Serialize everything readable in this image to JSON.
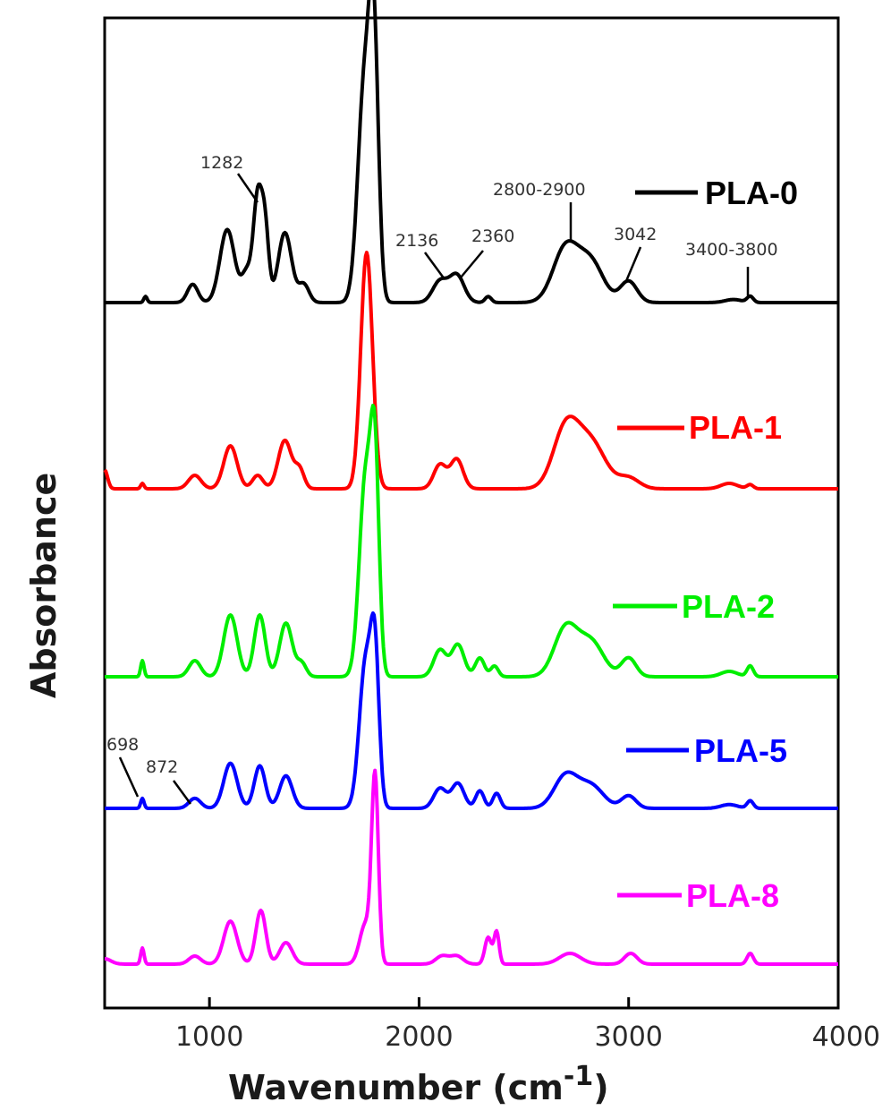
{
  "chart_data": {
    "type": "line",
    "title": "",
    "xlabel": "Wavenumber (cm",
    "xlabel_superscript": "-1",
    "xlabel_close": ")",
    "ylabel": "Absorbance",
    "xlim": [
      500,
      4000
    ],
    "x_ticks": [
      1000,
      2000,
      3000,
      4000
    ],
    "x_tick_labels": [
      "1000",
      "2000",
      "3000",
      "4000"
    ],
    "y_ticks_shown": false,
    "grid": false,
    "legend_placement": "inline-right",
    "colors": {
      "PLA-0": "#000000",
      "PLA-1": "#ff0000",
      "PLA-2": "#00ee00",
      "PLA-5": "#0000ff",
      "PLA-8": "#ff00ff"
    },
    "series": [
      {
        "name": "PLA-0",
        "color": "#000000",
        "baseline": 0.0,
        "peaks": [
          {
            "x": 695,
            "h": 0.02,
            "w": 8
          },
          {
            "x": 920,
            "h": 0.06,
            "w": 25
          },
          {
            "x": 1085,
            "h": 0.24,
            "w": 35
          },
          {
            "x": 1180,
            "h": 0.1,
            "w": 25
          },
          {
            "x": 1230,
            "h": 0.33,
            "w": 20
          },
          {
            "x": 1265,
            "h": 0.24,
            "w": 18
          },
          {
            "x": 1360,
            "h": 0.23,
            "w": 32
          },
          {
            "x": 1450,
            "h": 0.06,
            "w": 25
          },
          {
            "x": 1740,
            "h": 0.72,
            "w": 32
          },
          {
            "x": 1785,
            "h": 0.76,
            "w": 22
          },
          {
            "x": 2100,
            "h": 0.07,
            "w": 35
          },
          {
            "x": 2180,
            "h": 0.09,
            "w": 35
          },
          {
            "x": 2330,
            "h": 0.02,
            "w": 15
          },
          {
            "x": 2700,
            "h": 0.18,
            "w": 60
          },
          {
            "x": 2820,
            "h": 0.13,
            "w": 60
          },
          {
            "x": 3000,
            "h": 0.07,
            "w": 40
          },
          {
            "x": 3500,
            "h": 0.01,
            "w": 40
          },
          {
            "x": 3580,
            "h": 0.02,
            "w": 15
          }
        ]
      },
      {
        "name": "PLA-1",
        "color": "#ff0000",
        "baseline": 0.0,
        "peaks": [
          {
            "x": 500,
            "h": 0.07,
            "w": 14
          },
          {
            "x": 680,
            "h": 0.02,
            "w": 8
          },
          {
            "x": 930,
            "h": 0.05,
            "w": 30
          },
          {
            "x": 1100,
            "h": 0.16,
            "w": 32
          },
          {
            "x": 1230,
            "h": 0.05,
            "w": 25
          },
          {
            "x": 1360,
            "h": 0.18,
            "w": 32
          },
          {
            "x": 1430,
            "h": 0.07,
            "w": 22
          },
          {
            "x": 1750,
            "h": 0.88,
            "w": 28
          },
          {
            "x": 2100,
            "h": 0.09,
            "w": 30
          },
          {
            "x": 2180,
            "h": 0.11,
            "w": 30
          },
          {
            "x": 2700,
            "h": 0.22,
            "w": 60
          },
          {
            "x": 2820,
            "h": 0.17,
            "w": 70
          },
          {
            "x": 3000,
            "h": 0.04,
            "w": 50
          },
          {
            "x": 3480,
            "h": 0.02,
            "w": 40
          },
          {
            "x": 3580,
            "h": 0.015,
            "w": 15
          }
        ]
      },
      {
        "name": "PLA-2",
        "color": "#00ee00",
        "baseline": 0.0,
        "peaks": [
          {
            "x": 680,
            "h": 0.06,
            "w": 8
          },
          {
            "x": 930,
            "h": 0.06,
            "w": 28
          },
          {
            "x": 1100,
            "h": 0.23,
            "w": 32
          },
          {
            "x": 1240,
            "h": 0.23,
            "w": 26
          },
          {
            "x": 1365,
            "h": 0.2,
            "w": 30
          },
          {
            "x": 1440,
            "h": 0.05,
            "w": 22
          },
          {
            "x": 1745,
            "h": 0.74,
            "w": 30
          },
          {
            "x": 1790,
            "h": 0.72,
            "w": 20
          },
          {
            "x": 2100,
            "h": 0.1,
            "w": 30
          },
          {
            "x": 2185,
            "h": 0.12,
            "w": 30
          },
          {
            "x": 2290,
            "h": 0.07,
            "w": 22
          },
          {
            "x": 2360,
            "h": 0.04,
            "w": 18
          },
          {
            "x": 2700,
            "h": 0.18,
            "w": 55
          },
          {
            "x": 2820,
            "h": 0.13,
            "w": 60
          },
          {
            "x": 3000,
            "h": 0.07,
            "w": 35
          },
          {
            "x": 3480,
            "h": 0.02,
            "w": 40
          },
          {
            "x": 3580,
            "h": 0.04,
            "w": 15
          }
        ]
      },
      {
        "name": "PLA-5",
        "color": "#0000ff",
        "baseline": 0.0,
        "peaks": [
          {
            "x": 680,
            "h": 0.04,
            "w": 8
          },
          {
            "x": 930,
            "h": 0.04,
            "w": 28
          },
          {
            "x": 1100,
            "h": 0.18,
            "w": 32
          },
          {
            "x": 1240,
            "h": 0.17,
            "w": 26
          },
          {
            "x": 1365,
            "h": 0.13,
            "w": 30
          },
          {
            "x": 1745,
            "h": 0.58,
            "w": 30
          },
          {
            "x": 1790,
            "h": 0.55,
            "w": 20
          },
          {
            "x": 2100,
            "h": 0.08,
            "w": 30
          },
          {
            "x": 2185,
            "h": 0.1,
            "w": 30
          },
          {
            "x": 2290,
            "h": 0.07,
            "w": 20
          },
          {
            "x": 2370,
            "h": 0.06,
            "w": 18
          },
          {
            "x": 2700,
            "h": 0.13,
            "w": 55
          },
          {
            "x": 2820,
            "h": 0.09,
            "w": 60
          },
          {
            "x": 3000,
            "h": 0.05,
            "w": 35
          },
          {
            "x": 3480,
            "h": 0.015,
            "w": 40
          },
          {
            "x": 3580,
            "h": 0.03,
            "w": 15
          }
        ]
      },
      {
        "name": "PLA-8",
        "color": "#ff00ff",
        "baseline": 0.0,
        "peaks": [
          {
            "x": 500,
            "h": 0.02,
            "w": 30
          },
          {
            "x": 680,
            "h": 0.06,
            "w": 8
          },
          {
            "x": 930,
            "h": 0.03,
            "w": 28
          },
          {
            "x": 1100,
            "h": 0.16,
            "w": 32
          },
          {
            "x": 1245,
            "h": 0.2,
            "w": 24
          },
          {
            "x": 1365,
            "h": 0.08,
            "w": 30
          },
          {
            "x": 1745,
            "h": 0.15,
            "w": 28
          },
          {
            "x": 1790,
            "h": 0.68,
            "w": 16
          },
          {
            "x": 2110,
            "h": 0.03,
            "w": 30
          },
          {
            "x": 2180,
            "h": 0.03,
            "w": 30
          },
          {
            "x": 2330,
            "h": 0.1,
            "w": 16
          },
          {
            "x": 2370,
            "h": 0.12,
            "w": 12
          },
          {
            "x": 2720,
            "h": 0.04,
            "w": 50
          },
          {
            "x": 3010,
            "h": 0.04,
            "w": 30
          },
          {
            "x": 3580,
            "h": 0.04,
            "w": 15
          }
        ]
      }
    ],
    "annotations": [
      {
        "text": "1282",
        "x": 1282
      },
      {
        "text": "2136",
        "x": 2136
      },
      {
        "text": "2360",
        "x": 2360
      },
      {
        "text": "2800-2900",
        "x": 2850
      },
      {
        "text": "3042",
        "x": 3042
      },
      {
        "text": "3400-3800",
        "x": 3600
      },
      {
        "text": "698",
        "x": 698
      },
      {
        "text": "872",
        "x": 872
      }
    ]
  }
}
